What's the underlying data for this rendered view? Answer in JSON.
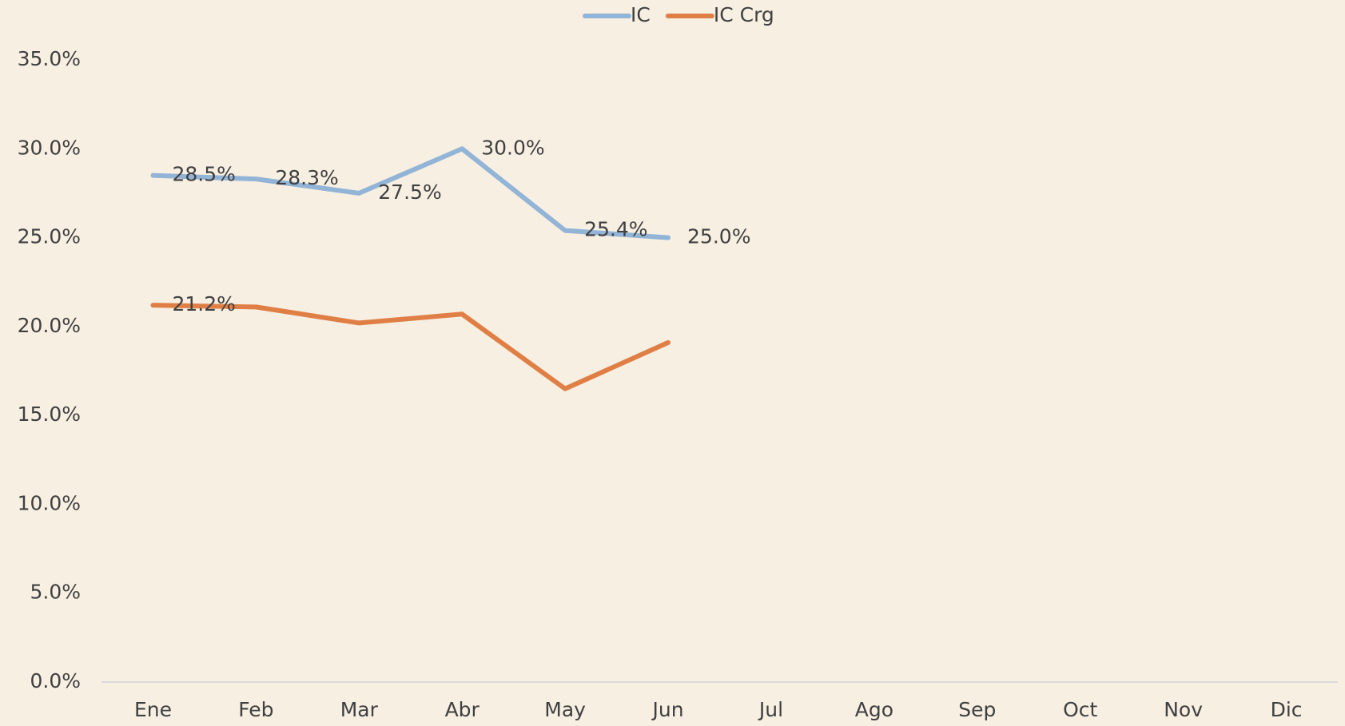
{
  "chart_data": {
    "type": "line",
    "categories": [
      "Ene",
      "Feb",
      "Mar",
      "Abr",
      "May",
      "Jun",
      "Jul",
      "Ago",
      "Sep",
      "Oct",
      "Nov",
      "Dic"
    ],
    "series": [
      {
        "name": "IC",
        "color": "#92b4d6",
        "values": [
          28.5,
          28.3,
          27.5,
          30.0,
          25.4,
          25.0,
          null,
          null,
          null,
          null,
          null,
          null
        ],
        "value_labels": [
          "28.5%",
          "28.3%",
          "27.5%",
          "30.0%",
          "25.4%",
          "25.0%",
          null,
          null,
          null,
          null,
          null,
          null
        ]
      },
      {
        "name": "IC Crg",
        "color": "#e07f45",
        "values": [
          21.2,
          21.1,
          20.2,
          20.7,
          16.5,
          19.1,
          null,
          null,
          null,
          null,
          null,
          null
        ],
        "value_labels": [
          "21.2%",
          null,
          null,
          null,
          null,
          null,
          null,
          null,
          null,
          null,
          null,
          null
        ]
      }
    ],
    "ylim": [
      0,
      35
    ],
    "yticks": [
      {
        "value": 0,
        "label": "0.0%"
      },
      {
        "value": 5,
        "label": "5.0%"
      },
      {
        "value": 10,
        "label": "10.0%"
      },
      {
        "value": 15,
        "label": "15.0%"
      },
      {
        "value": 20,
        "label": "20.0%"
      },
      {
        "value": 25,
        "label": "25.0%"
      },
      {
        "value": 30,
        "label": "30.0%"
      },
      {
        "value": 35,
        "label": "35.0%"
      }
    ],
    "grid": false,
    "legend": "top"
  }
}
